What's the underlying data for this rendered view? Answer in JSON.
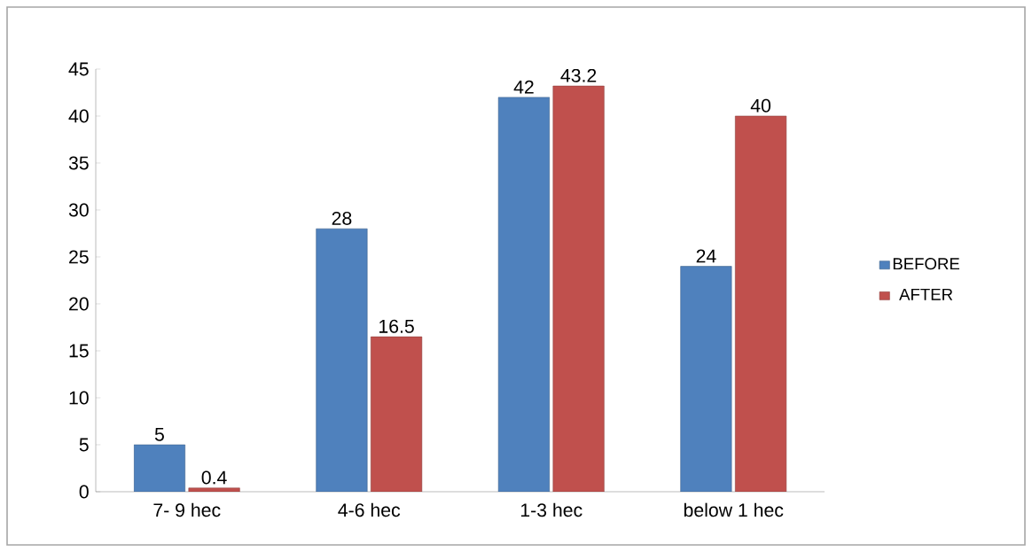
{
  "chart_data": {
    "type": "bar",
    "categories": [
      "7- 9 hec",
      "4-6 hec",
      "1-3 hec",
      "below 1 hec"
    ],
    "series": [
      {
        "name": "BEFORE",
        "color": "#4f81bd",
        "values": [
          5,
          28,
          42,
          24
        ]
      },
      {
        "name": "AFTER",
        "color": "#c0504d",
        "values": [
          0.4,
          16.5,
          43.2,
          40
        ]
      }
    ],
    "ylim": [
      0,
      45
    ],
    "yticks": [
      0,
      5,
      10,
      15,
      20,
      25,
      30,
      35,
      40,
      45
    ],
    "data_labels": true,
    "legend": "right",
    "grid": false
  }
}
